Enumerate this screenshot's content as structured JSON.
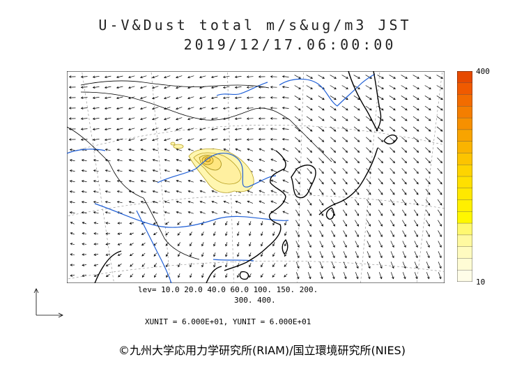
{
  "title": {
    "line1": "U-V&Dust total m/s&ug/m3 JST",
    "line2": "2019/12/17.06:00:00"
  },
  "colorbar": {
    "max_label": "400",
    "min_label": "10",
    "colors": [
      "#e64a00",
      "#f05a00",
      "#f26c00",
      "#f47e00",
      "#f69000",
      "#f8a400",
      "#fab400",
      "#fcc400",
      "#fed400",
      "#ffe000",
      "#ffe800",
      "#fff000",
      "#fff700",
      "#fff870",
      "#fff9a0",
      "#fffbc0",
      "#fffcd5",
      "#fffde8"
    ]
  },
  "levels": {
    "line1": "lev= 10.0 20.0 40.0 60.0 100. 150. 200.",
    "line2": "300. 400."
  },
  "units": "XUNIT = 6.000E+01, YUNIT = 6.000E+01",
  "copyright": "©九州大学応用力学研究所(RIAM)/国立環境研究所(NIES)",
  "map": {
    "coast_color": "#000000",
    "river_color": "#1f5fd6",
    "grid_color": "#888888",
    "dust_fill": "#fff3a6",
    "dust_edge": "#b8a020"
  }
}
